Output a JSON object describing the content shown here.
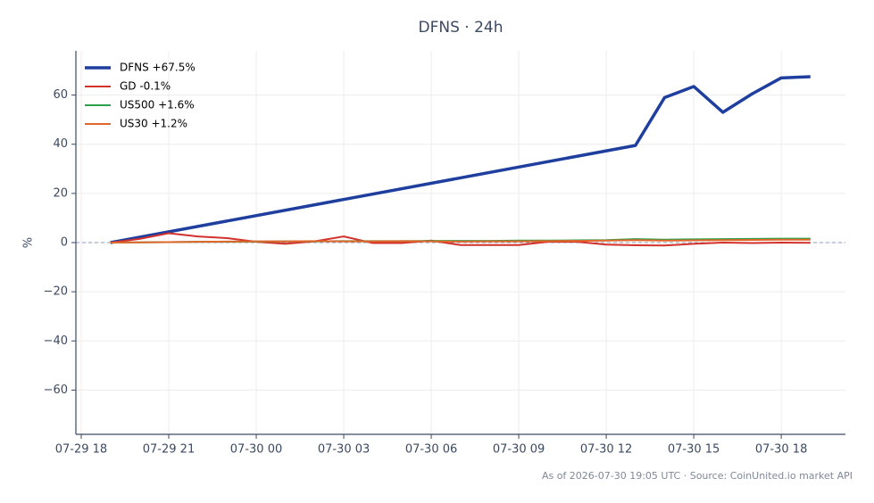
{
  "chart_data": {
    "type": "line",
    "title": "DFNS · 24h",
    "ylabel": "%",
    "footer": "As of 2026-07-30 19:05 UTC · Source: CoinUnited.io market API",
    "xlim": [
      "07-29 17:49",
      "07-30 20:12"
    ],
    "xticks": [
      "07-29 18",
      "07-29 21",
      "07-30 00",
      "07-30 03",
      "07-30 06",
      "07-30 09",
      "07-30 12",
      "07-30 15",
      "07-30 18"
    ],
    "ylim": [
      -78,
      78
    ],
    "yticks": [
      {
        "value": -60,
        "label": "−60"
      },
      {
        "value": -40,
        "label": "−40"
      },
      {
        "value": -20,
        "label": "−20"
      },
      0,
      20,
      40,
      60
    ],
    "grid": true,
    "zero_line": true,
    "legend": "upper left",
    "series": [
      {
        "name": "DFNS +67.5%",
        "color": "#1f3f9f",
        "x": [
          "07-29 19",
          "07-30 13",
          "07-30 14",
          "07-30 15",
          "07-30 16",
          "07-30 17",
          "07-30 18",
          "07-30 19"
        ],
        "values": [
          0,
          39.5,
          59,
          63.5,
          53,
          60.5,
          67,
          67.5
        ]
      },
      {
        "name": "GD -0.1%",
        "color": "#d3312c",
        "x": [
          "07-29 19",
          "07-29 20",
          "07-29 21",
          "07-29 22",
          "07-29 23",
          "07-30 00",
          "07-30 01",
          "07-30 02",
          "07-30 03",
          "07-30 04",
          "07-30 05",
          "07-30 06",
          "07-30 07",
          "07-30 08",
          "07-30 09",
          "07-30 10",
          "07-30 11",
          "07-30 12",
          "07-30 13",
          "07-30 14",
          "07-30 15",
          "07-30 16",
          "07-30 17",
          "07-30 18",
          "07-30 19"
        ],
        "values": [
          0,
          1.5,
          3.8,
          2.5,
          1.8,
          0.3,
          -0.5,
          0.5,
          2.5,
          -0.2,
          -0.2,
          0.8,
          -1,
          -1,
          -1,
          0.3,
          0.3,
          -0.8,
          -1.1,
          -1.2,
          -0.5,
          0,
          -0.2,
          0,
          -0.1
        ]
      },
      {
        "name": "US500 +1.6%",
        "color": "#2ca048",
        "x": [
          "07-29 19",
          "07-29 20",
          "07-29 21",
          "07-29 22",
          "07-29 23",
          "07-30 00",
          "07-30 01",
          "07-30 02",
          "07-30 03",
          "07-30 04",
          "07-30 05",
          "07-30 06",
          "07-30 07",
          "07-30 08",
          "07-30 09",
          "07-30 10",
          "07-30 11",
          "07-30 12",
          "07-30 13",
          "07-30 14",
          "07-30 15",
          "07-30 16",
          "07-30 17",
          "07-30 18",
          "07-30 19"
        ],
        "values": [
          0,
          0.1,
          0.2,
          0.3,
          0.3,
          0.4,
          0.5,
          0.5,
          0.6,
          0.6,
          0.6,
          0.7,
          0.7,
          0.7,
          0.8,
          0.8,
          0.9,
          1.0,
          1.4,
          1.2,
          1.3,
          1.4,
          1.5,
          1.6,
          1.6
        ]
      },
      {
        "name": "US30 +1.2%",
        "color": "#e0662a",
        "x": [
          "07-29 19",
          "07-29 20",
          "07-29 21",
          "07-29 22",
          "07-29 23",
          "07-30 00",
          "07-30 01",
          "07-30 02",
          "07-30 03",
          "07-30 04",
          "07-30 05",
          "07-30 06",
          "07-30 07",
          "07-30 08",
          "07-30 09",
          "07-30 10",
          "07-30 11",
          "07-30 12",
          "07-30 13",
          "07-30 14",
          "07-30 15",
          "07-30 16",
          "07-30 17",
          "07-30 18",
          "07-30 19"
        ],
        "values": [
          0,
          0.1,
          0.2,
          0.3,
          0.4,
          0.5,
          0.5,
          0.6,
          0.5,
          0.5,
          0.6,
          0.5,
          0.4,
          0.5,
          0.5,
          0.6,
          0.7,
          0.8,
          1.0,
          0.8,
          0.9,
          1.0,
          1.1,
          1.2,
          1.2
        ]
      }
    ]
  }
}
